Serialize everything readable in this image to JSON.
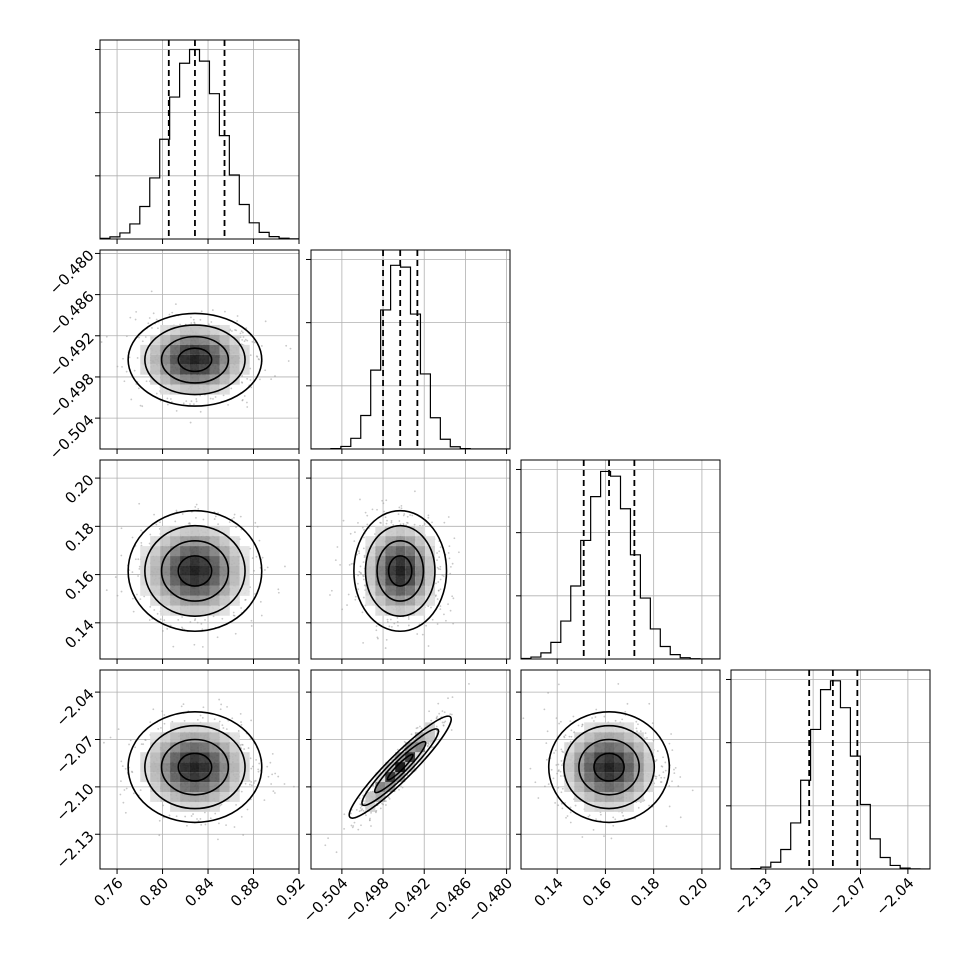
{
  "chart_data": {
    "type": "corner",
    "parameters": [
      {
        "range": [
          0.745,
          0.92
        ],
        "ticks": [
          "0.76",
          "0.80",
          "0.84",
          "0.88",
          "0.92"
        ],
        "mean": 0.8285,
        "std": 0.0235,
        "quantiles": [
          0.8055,
          0.8285,
          0.8545
        ]
      },
      {
        "range": [
          -0.5085,
          -0.4795
        ],
        "ticks": [
          "−0.504",
          "−0.498",
          "−0.492",
          "−0.486",
          "−0.480"
        ],
        "mean": -0.4955,
        "std": 0.0027,
        "quantiles": [
          -0.498,
          -0.4955,
          -0.493
        ]
      },
      {
        "range": [
          0.125,
          0.2075
        ],
        "ticks": [
          "0.14",
          "0.16",
          "0.18",
          "0.20"
        ],
        "mean": 0.1615,
        "std": 0.01,
        "quantiles": [
          0.151,
          0.1615,
          0.172
        ]
      },
      {
        "range": [
          -2.152,
          -2.026
        ],
        "ticks": [
          "−2.13",
          "−2.10",
          "−2.07",
          "−2.04"
        ],
        "mean": -2.0875,
        "std": 0.014,
        "quantiles": [
          -2.1025,
          -2.0875,
          -2.072
        ]
      }
    ],
    "correlations": {
      "3-1": 0.94,
      "2-1": 0.0,
      "2-0": 0.0,
      "1-0": 0.0,
      "3-0": 0.0,
      "3-2": 0.0
    },
    "grid": true,
    "histogram_bins": 20,
    "contour_levels": 3
  }
}
